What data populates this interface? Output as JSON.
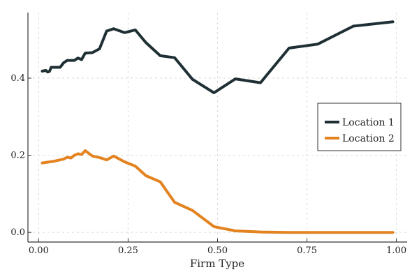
{
  "chart_data": {
    "type": "line",
    "title": "",
    "xlabel": "Firm Type",
    "ylabel": "",
    "xlim": [
      -0.03,
      1.03
    ],
    "ylim": [
      -0.025,
      0.57
    ],
    "x_ticks": [
      0.0,
      0.25,
      0.5,
      0.75,
      1.0
    ],
    "x_tick_labels": [
      "0.00",
      "0.25",
      "0.50",
      "0.75",
      "1.00"
    ],
    "y_ticks": [
      0.0,
      0.2,
      0.4
    ],
    "y_tick_labels": [
      "0.0",
      "0.2",
      "0.4"
    ],
    "grid": true,
    "legend_position": "right",
    "series": [
      {
        "name": "Location 1",
        "color": "#1f3035",
        "x": [
          0.01,
          0.02,
          0.025,
          0.03,
          0.035,
          0.045,
          0.06,
          0.07,
          0.08,
          0.1,
          0.11,
          0.12,
          0.13,
          0.15,
          0.17,
          0.19,
          0.21,
          0.24,
          0.27,
          0.3,
          0.34,
          0.38,
          0.43,
          0.49,
          0.55,
          0.62,
          0.7,
          0.78,
          0.88,
          0.99
        ],
        "values": [
          0.418,
          0.42,
          0.416,
          0.417,
          0.428,
          0.428,
          0.428,
          0.44,
          0.446,
          0.446,
          0.452,
          0.448,
          0.465,
          0.466,
          0.476,
          0.522,
          0.528,
          0.518,
          0.525,
          0.492,
          0.458,
          0.453,
          0.397,
          0.362,
          0.398,
          0.388,
          0.478,
          0.488,
          0.535,
          0.546
        ]
      },
      {
        "name": "Location 2",
        "color": "#e38320",
        "x": [
          0.01,
          0.025,
          0.04,
          0.05,
          0.06,
          0.07,
          0.08,
          0.09,
          0.1,
          0.11,
          0.12,
          0.13,
          0.15,
          0.17,
          0.19,
          0.21,
          0.24,
          0.27,
          0.3,
          0.34,
          0.38,
          0.43,
          0.49,
          0.55,
          0.62,
          0.7,
          0.78,
          0.88,
          0.99
        ],
        "values": [
          0.18,
          0.182,
          0.184,
          0.186,
          0.188,
          0.19,
          0.195,
          0.193,
          0.2,
          0.204,
          0.202,
          0.212,
          0.198,
          0.194,
          0.188,
          0.198,
          0.183,
          0.172,
          0.147,
          0.131,
          0.078,
          0.057,
          0.015,
          0.004,
          0.001,
          0.0,
          0.0,
          0.0,
          0.0
        ]
      }
    ]
  }
}
